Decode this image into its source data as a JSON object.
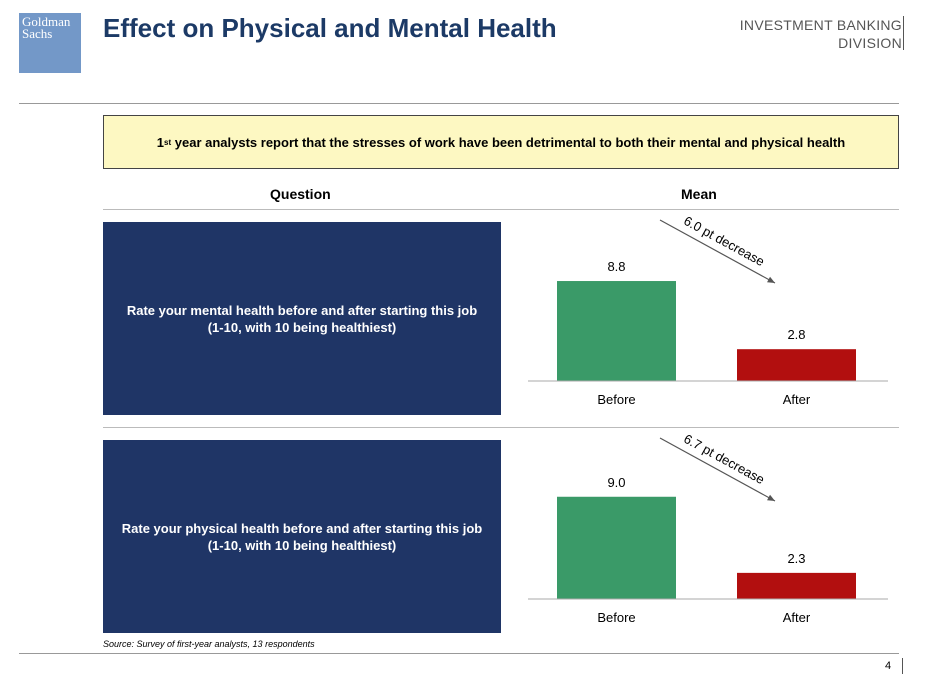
{
  "header": {
    "logo_line1": "Goldman",
    "logo_line2": "Sachs",
    "title": "Effect on Physical and Mental Health",
    "division_line1": "INVESTMENT BANKING",
    "division_line2": "DIVISION"
  },
  "banner": {
    "sup": "st",
    "num": "1",
    "text": " year analysts report that the stresses of work have been detrimental to both their mental and physical health"
  },
  "columns": {
    "question": "Question",
    "mean": "Mean"
  },
  "questions": [
    {
      "text": "Rate your mental health before and after starting this job\n(1-10, with 10 being healthiest)"
    },
    {
      "text": "Rate your physical health before and after starting this job\n(1-10, with 10 being healthiest)"
    }
  ],
  "colors": {
    "before": "#3a9a68",
    "after": "#b20f0f",
    "navy": "#1f3566"
  },
  "chart_data": [
    {
      "type": "bar",
      "categories": [
        "Before",
        "After"
      ],
      "values": [
        8.8,
        2.8
      ],
      "annotation": "6.0 pt decrease",
      "ylim": [
        0,
        10
      ],
      "grid": false
    },
    {
      "type": "bar",
      "categories": [
        "Before",
        "After"
      ],
      "values": [
        9.0,
        2.3
      ],
      "annotation": "6.7 pt decrease",
      "ylim": [
        0,
        10
      ],
      "grid": false
    }
  ],
  "footer": {
    "source": "Source: Survey of first-year analysts, 13 respondents",
    "page": "4"
  }
}
